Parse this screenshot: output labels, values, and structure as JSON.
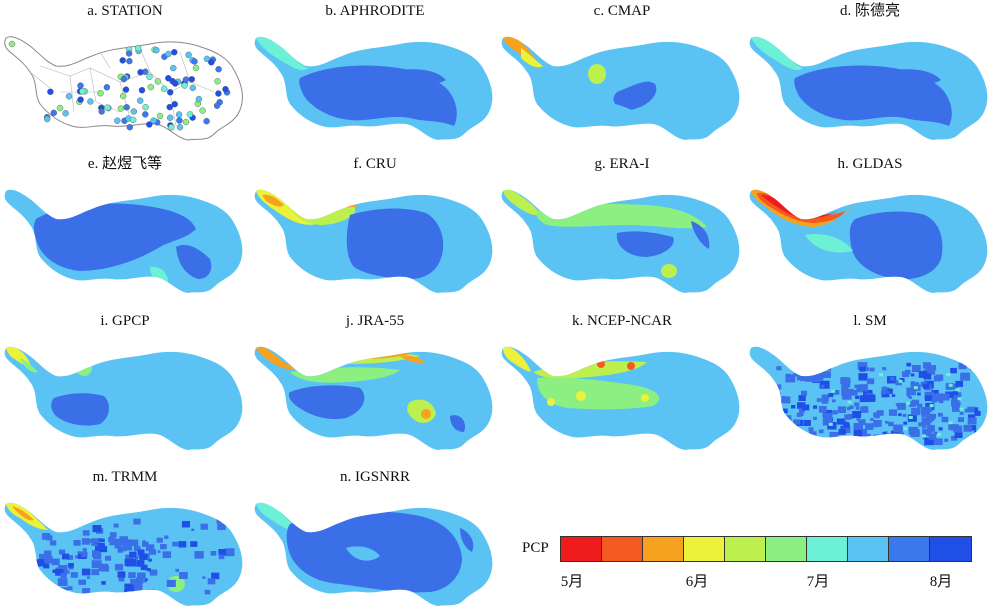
{
  "panels": [
    {
      "id": "a",
      "title": "a. STATION",
      "scheme": "station"
    },
    {
      "id": "b",
      "title": "b. APHRODITE",
      "scheme": "aphrodite"
    },
    {
      "id": "c",
      "title": "c. CMAP",
      "scheme": "cmap"
    },
    {
      "id": "d",
      "title": "d. 陈德亮",
      "scheme": "aphrodite"
    },
    {
      "id": "e",
      "title": "e. 赵煜飞等",
      "scheme": "zhao"
    },
    {
      "id": "f",
      "title": "f. CRU",
      "scheme": "cru"
    },
    {
      "id": "g",
      "title": "g. ERA-I",
      "scheme": "era"
    },
    {
      "id": "h",
      "title": "h. GLDAS",
      "scheme": "gldas"
    },
    {
      "id": "i",
      "title": "i. GPCP",
      "scheme": "gpcp"
    },
    {
      "id": "j",
      "title": "j. JRA-55",
      "scheme": "jra"
    },
    {
      "id": "k",
      "title": "k. NCEP-NCAR",
      "scheme": "ncep"
    },
    {
      "id": "l",
      "title": "l. SM",
      "scheme": "sm"
    },
    {
      "id": "m",
      "title": "m. TRMM",
      "scheme": "trmm"
    },
    {
      "id": "n",
      "title": "n. IGSNRR",
      "scheme": "igsnrr"
    }
  ],
  "legend": {
    "title": "PCP",
    "colors": [
      "#ee1c1c",
      "#f45a20",
      "#f7a21f",
      "#ecf23a",
      "#bdf04f",
      "#8cef82",
      "#6cf0d6",
      "#5bc3f4",
      "#3a78ee",
      "#1f4fe6"
    ],
    "ticks": [
      "5月",
      "6月",
      "7月",
      "8月"
    ]
  },
  "colors": {
    "base": "#5bc3f4",
    "deep": "#3a6fe8",
    "mid": "#6cf0d6",
    "light_green": "#8cef82",
    "yellow": "#ecf23a",
    "orange": "#f7a21f",
    "red": "#ee1c1c"
  }
}
